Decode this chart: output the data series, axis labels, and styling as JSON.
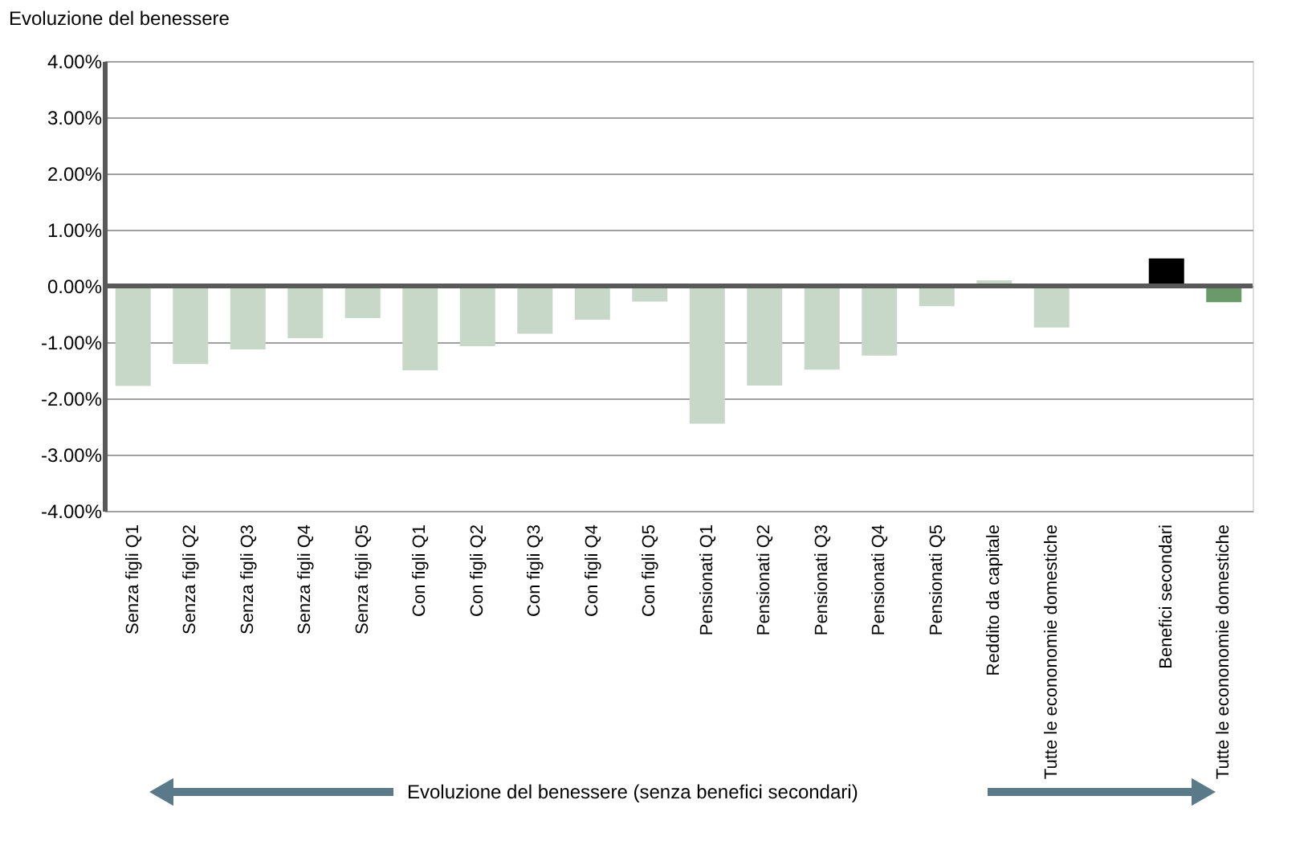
{
  "chart_data": {
    "type": "bar",
    "ylabel": "Evoluzione del benessere",
    "categories": [
      "Senza figli Q1",
      "Senza figli Q2",
      "Senza figli Q3",
      "Senza figli Q4",
      "Senza figli Q5",
      "Con figli Q1",
      "Con figli Q2",
      "Con figli Q3",
      "Con figli Q4",
      "Con figli Q5",
      "Pensionati Q1",
      "Pensionati Q2",
      "Pensionati Q3",
      "Pensionati Q4",
      "Pensionati Q5",
      "Reddito da capitale",
      "Tutte le econonomie domestiche",
      null,
      "Benefici secondari",
      "Tutte le econonomie domestiche"
    ],
    "values": [
      -1.78,
      -1.39,
      -1.13,
      -0.93,
      -0.57,
      -1.5,
      -1.07,
      -0.85,
      -0.6,
      -0.28,
      -2.45,
      -1.77,
      -1.49,
      -1.24,
      -0.36,
      0.1,
      -0.74,
      null,
      0.49,
      -0.29
    ],
    "colors": [
      "#c8d8c8",
      "#c8d8c8",
      "#c8d8c8",
      "#c8d8c8",
      "#c8d8c8",
      "#c8d8c8",
      "#c8d8c8",
      "#c8d8c8",
      "#c8d8c8",
      "#c8d8c8",
      "#c8d8c8",
      "#c8d8c8",
      "#c8d8c8",
      "#c8d8c8",
      "#c8d8c8",
      "#c8d8c8",
      "#c8d8c8",
      "#c8d8c8",
      "#000000",
      "#6a9a6a"
    ],
    "ylim": [
      -4,
      4
    ],
    "yticks": [
      {
        "value": 4,
        "label": "4.00%"
      },
      {
        "value": 3,
        "label": "3.00%"
      },
      {
        "value": 2,
        "label": "2.00%"
      },
      {
        "value": 1,
        "label": "1.00%"
      },
      {
        "value": 0,
        "label": "0.00%"
      },
      {
        "value": -1,
        "label": "-1.00%"
      },
      {
        "value": -2,
        "label": "-2.00%"
      },
      {
        "value": -3,
        "label": "-3.00%"
      },
      {
        "value": -4,
        "label": "-4.00%"
      }
    ],
    "grid": "y",
    "ref_lines": [
      {
        "axis": "y",
        "value": 0,
        "label": null,
        "color": "#595959"
      }
    ],
    "annotations": [
      "Evoluzione del benessere (senza benefici secondari)"
    ]
  }
}
